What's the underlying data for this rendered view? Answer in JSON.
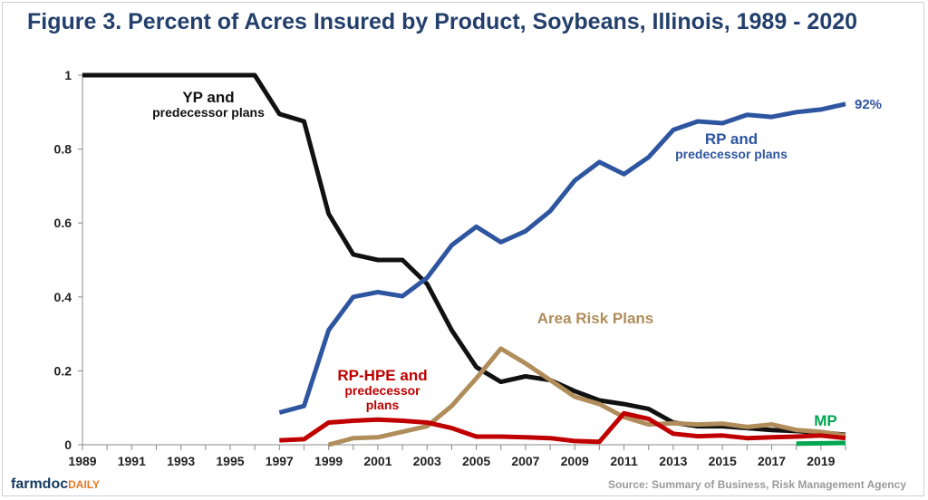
{
  "title": "Figure 3. Percent of Acres Insured by Product, Soybeans, Illinois, 1989 - 2020",
  "source": "Source: Summary of Business, Risk Management Agency",
  "logo": {
    "main": "farmdoc",
    "suffix": "DAILY"
  },
  "chart_data": {
    "type": "line",
    "title": "Figure 3. Percent of Acres Insured by Product, Soybeans, Illinois, 1989 - 2020",
    "xlabel": "",
    "ylabel": "",
    "xlim": [
      1989,
      2020
    ],
    "ylim": [
      0,
      1
    ],
    "x_ticks": [
      "1989",
      "1991",
      "1993",
      "1995",
      "1997",
      "1999",
      "2001",
      "2003",
      "2005",
      "2007",
      "2009",
      "2011",
      "2013",
      "2015",
      "2017",
      "2019"
    ],
    "y_ticks": [
      "0",
      "0.2",
      "0.4",
      "0.6",
      "0.8",
      "1"
    ],
    "grid": false,
    "legend": "none",
    "series": [
      {
        "name": "YP and predecessor plans",
        "label_lines": [
          "YP and",
          "predecessor plans"
        ],
        "color": "#111111",
        "x": [
          1989,
          1990,
          1991,
          1992,
          1993,
          1994,
          1995,
          1996,
          1997,
          1998,
          1999,
          2000,
          2001,
          2002,
          2003,
          2004,
          2005,
          2006,
          2007,
          2008,
          2009,
          2010,
          2011,
          2012,
          2013,
          2014,
          2015,
          2016,
          2017,
          2018,
          2019,
          2020
        ],
        "values": [
          1.0,
          1.0,
          1.0,
          1.0,
          1.0,
          1.0,
          1.0,
          1.0,
          0.895,
          0.875,
          0.625,
          0.515,
          0.5,
          0.5,
          0.435,
          0.31,
          0.21,
          0.17,
          0.185,
          0.175,
          0.145,
          0.12,
          0.11,
          0.097,
          0.06,
          0.05,
          0.05,
          0.045,
          0.04,
          0.037,
          0.033,
          0.027
        ]
      },
      {
        "name": "RP and predecessor plans",
        "label_lines": [
          "RP and",
          "predecessor plans"
        ],
        "end_label": "92%",
        "color": "#2e55a0",
        "x": [
          1997,
          1998,
          1999,
          2000,
          2001,
          2002,
          2003,
          2004,
          2005,
          2006,
          2007,
          2008,
          2009,
          2010,
          2011,
          2012,
          2013,
          2014,
          2015,
          2016,
          2017,
          2018,
          2019,
          2020
        ],
        "values": [
          0.087,
          0.105,
          0.31,
          0.4,
          0.413,
          0.402,
          0.452,
          0.54,
          0.59,
          0.548,
          0.578,
          0.632,
          0.715,
          0.765,
          0.732,
          0.778,
          0.852,
          0.875,
          0.87,
          0.893,
          0.887,
          0.9,
          0.907,
          0.922
        ]
      },
      {
        "name": "Area Risk Plans",
        "label_lines": [
          "Area Risk Plans"
        ],
        "color": "#b08d5a",
        "x": [
          1999,
          2000,
          2001,
          2002,
          2003,
          2004,
          2005,
          2006,
          2007,
          2008,
          2009,
          2010,
          2011,
          2012,
          2013,
          2014,
          2015,
          2016,
          2017,
          2018,
          2019,
          2020
        ],
        "values": [
          0.0,
          0.018,
          0.02,
          0.035,
          0.05,
          0.105,
          0.18,
          0.26,
          0.22,
          0.175,
          0.13,
          0.11,
          0.075,
          0.055,
          0.058,
          0.055,
          0.057,
          0.048,
          0.055,
          0.04,
          0.035,
          0.025
        ]
      },
      {
        "name": "RP-HPE and predecessor plans",
        "label_lines": [
          "RP-HPE and",
          "predecessor",
          "plans"
        ],
        "color": "#c00000",
        "x": [
          1997,
          1998,
          1999,
          2000,
          2001,
          2002,
          2003,
          2004,
          2005,
          2006,
          2007,
          2008,
          2009,
          2010,
          2011,
          2012,
          2013,
          2014,
          2015,
          2016,
          2017,
          2018,
          2019,
          2020
        ],
        "values": [
          0.012,
          0.015,
          0.06,
          0.065,
          0.068,
          0.065,
          0.06,
          0.045,
          0.022,
          0.022,
          0.02,
          0.018,
          0.01,
          0.008,
          0.085,
          0.07,
          0.03,
          0.023,
          0.025,
          0.018,
          0.02,
          0.022,
          0.025,
          0.018
        ]
      },
      {
        "name": "MP",
        "label_lines": [
          "MP"
        ],
        "color": "#00a651",
        "x": [
          2018,
          2019,
          2020
        ],
        "values": [
          0.003,
          0.004,
          0.005
        ]
      }
    ]
  }
}
